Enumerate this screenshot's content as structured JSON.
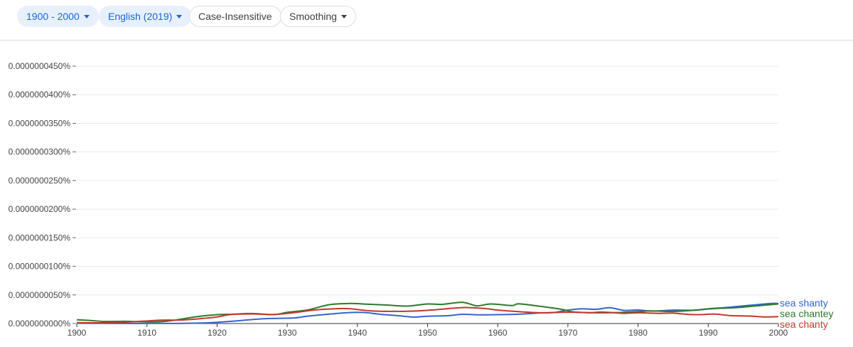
{
  "toolbar": {
    "year_range": "1900 - 2000",
    "corpus": "English (2019)",
    "case": "Case-Insensitive",
    "smoothing": "Smoothing"
  },
  "chart_data": {
    "type": "line",
    "xlim": [
      1900,
      2000
    ],
    "ylim": [
      0,
      4.5e-07
    ],
    "x_ticks": [
      "1900",
      "1910",
      "1920",
      "1930",
      "1940",
      "1950",
      "1960",
      "1970",
      "1980",
      "1990",
      "2000"
    ],
    "y_ticks": [
      "0.0000000000%",
      "0.0000000050%",
      "0.0000000100%",
      "0.0000000150%",
      "0.0000000200%",
      "0.0000000250%",
      "0.0000000300%",
      "0.0000000350%",
      "0.0000000400%",
      "0.0000000450%"
    ],
    "grid": true,
    "series": [
      {
        "name": "sea shanty",
        "color": "#3366cc",
        "points": [
          [
            1900,
            5e-10
          ],
          [
            1903,
            2e-10
          ],
          [
            1907,
            1e-10
          ],
          [
            1912,
            2e-10
          ],
          [
            1915,
            3e-10
          ],
          [
            1918,
            9e-10
          ],
          [
            1920,
            2.2e-09
          ],
          [
            1923,
            4.8e-09
          ],
          [
            1926,
            8e-09
          ],
          [
            1929,
            9.2e-09
          ],
          [
            1931,
            9.8e-09
          ],
          [
            1933,
            1.3e-08
          ],
          [
            1936,
            1.65e-08
          ],
          [
            1939,
            1.93e-08
          ],
          [
            1941,
            1.93e-08
          ],
          [
            1943,
            1.65e-08
          ],
          [
            1946,
            1.35e-08
          ],
          [
            1948,
            1.13e-08
          ],
          [
            1950,
            1.28e-08
          ],
          [
            1953,
            1.38e-08
          ],
          [
            1955,
            1.62e-08
          ],
          [
            1957,
            1.53e-08
          ],
          [
            1960,
            1.56e-08
          ],
          [
            1963,
            1.63e-08
          ],
          [
            1966,
            1.85e-08
          ],
          [
            1968,
            1.93e-08
          ],
          [
            1970,
            2.35e-08
          ],
          [
            1972,
            2.58e-08
          ],
          [
            1974,
            2.48e-08
          ],
          [
            1976,
            2.77e-08
          ],
          [
            1978,
            2.3e-08
          ],
          [
            1980,
            2.37e-08
          ],
          [
            1982,
            2.18e-08
          ],
          [
            1985,
            2.35e-08
          ],
          [
            1988,
            2.32e-08
          ],
          [
            1990,
            2.58e-08
          ],
          [
            1993,
            2.85e-08
          ],
          [
            1996,
            3.2e-08
          ],
          [
            1999,
            3.52e-08
          ],
          [
            2000,
            3.49e-08
          ]
        ]
      },
      {
        "name": "sea chantey",
        "color": "#2d7a2d",
        "points": [
          [
            1900,
            6.5e-09
          ],
          [
            1902,
            5.2e-09
          ],
          [
            1904,
            3.6e-09
          ],
          [
            1907,
            3.8e-09
          ],
          [
            1910,
            2.8e-09
          ],
          [
            1912,
            3.2e-09
          ],
          [
            1914,
            6e-09
          ],
          [
            1917,
            1.18e-08
          ],
          [
            1920,
            1.55e-08
          ],
          [
            1922,
            1.62e-08
          ],
          [
            1925,
            1.75e-08
          ],
          [
            1928,
            1.55e-08
          ],
          [
            1930,
            1.95e-08
          ],
          [
            1933,
            2.4e-08
          ],
          [
            1936,
            3.3e-08
          ],
          [
            1939,
            3.5e-08
          ],
          [
            1941,
            3.4e-08
          ],
          [
            1944,
            3.25e-08
          ],
          [
            1947,
            3.05e-08
          ],
          [
            1950,
            3.42e-08
          ],
          [
            1952,
            3.35e-08
          ],
          [
            1955,
            3.7e-08
          ],
          [
            1957,
            3.1e-08
          ],
          [
            1959,
            3.42e-08
          ],
          [
            1962,
            3.15e-08
          ],
          [
            1963,
            3.45e-08
          ],
          [
            1966,
            3.02e-08
          ],
          [
            1969,
            2.5e-08
          ],
          [
            1971,
            2e-08
          ],
          [
            1974,
            1.88e-08
          ],
          [
            1977,
            1.92e-08
          ],
          [
            1980,
            2.08e-08
          ],
          [
            1982,
            2.2e-08
          ],
          [
            1985,
            2.1e-08
          ],
          [
            1988,
            2.32e-08
          ],
          [
            1991,
            2.62e-08
          ],
          [
            1994,
            2.78e-08
          ],
          [
            1997,
            3.1e-08
          ],
          [
            2000,
            3.42e-08
          ]
        ]
      },
      {
        "name": "sea chanty",
        "color": "#c0392b",
        "points": [
          [
            1900,
            1.5e-09
          ],
          [
            1903,
            1.3e-09
          ],
          [
            1906,
            1.6e-09
          ],
          [
            1909,
            3.8e-09
          ],
          [
            1912,
            5.8e-09
          ],
          [
            1915,
            6.2e-09
          ],
          [
            1918,
            9e-09
          ],
          [
            1920,
            1.15e-08
          ],
          [
            1922,
            1.58e-08
          ],
          [
            1925,
            1.68e-08
          ],
          [
            1928,
            1.58e-08
          ],
          [
            1931,
            1.92e-08
          ],
          [
            1934,
            2.38e-08
          ],
          [
            1937,
            2.6e-08
          ],
          [
            1939,
            2.58e-08
          ],
          [
            1942,
            2.2e-08
          ],
          [
            1945,
            2.12e-08
          ],
          [
            1948,
            2.18e-08
          ],
          [
            1951,
            2.4e-08
          ],
          [
            1955,
            2.78e-08
          ],
          [
            1958,
            2.63e-08
          ],
          [
            1960,
            2.35e-08
          ],
          [
            1963,
            2.08e-08
          ],
          [
            1966,
            1.88e-08
          ],
          [
            1969,
            1.96e-08
          ],
          [
            1971,
            1.98e-08
          ],
          [
            1973,
            1.9e-08
          ],
          [
            1975,
            2e-08
          ],
          [
            1978,
            1.78e-08
          ],
          [
            1980,
            1.88e-08
          ],
          [
            1983,
            1.78e-08
          ],
          [
            1985,
            1.82e-08
          ],
          [
            1988,
            1.55e-08
          ],
          [
            1991,
            1.65e-08
          ],
          [
            1993,
            1.4e-08
          ],
          [
            1996,
            1.3e-08
          ],
          [
            1998,
            1.15e-08
          ],
          [
            2000,
            1.2e-08
          ]
        ]
      }
    ]
  }
}
